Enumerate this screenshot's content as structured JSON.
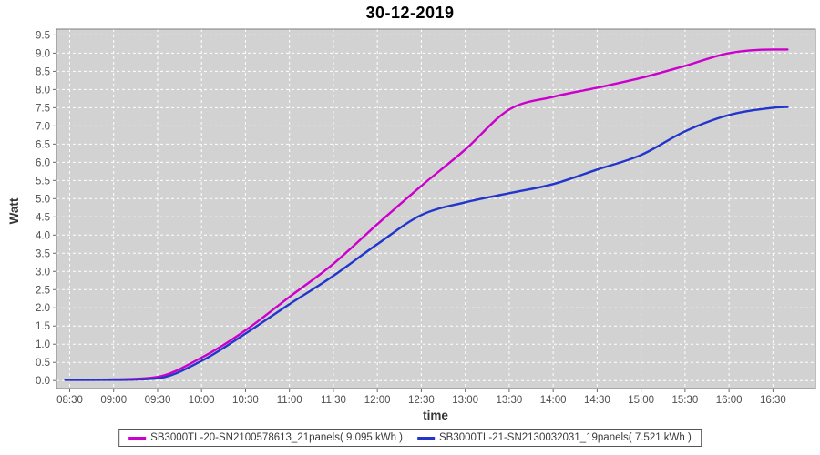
{
  "header": {
    "title": "30-12-2019"
  },
  "chart_data": {
    "type": "line",
    "title": "30-12-2019",
    "xlabel": "time",
    "ylabel": "Watt",
    "x_tick_labels": [
      "08:30",
      "09:00",
      "09:30",
      "10:00",
      "10:30",
      "11:00",
      "11:30",
      "12:00",
      "12:30",
      "13:00",
      "13:30",
      "14:00",
      "14:30",
      "15:00",
      "15:30",
      "16:00",
      "16:30"
    ],
    "y_tick_labels": [
      "0.0",
      "0.5",
      "1.0",
      "1.5",
      "2.0",
      "2.5",
      "3.0",
      "3.5",
      "4.0",
      "4.5",
      "5.0",
      "5.5",
      "6.0",
      "6.5",
      "7.0",
      "7.5",
      "8.0",
      "8.5",
      "9.0",
      "9.5"
    ],
    "xlim": [
      "08:21",
      "16:59"
    ],
    "ylim": [
      -0.22,
      9.66
    ],
    "grid": true,
    "legend_position": "bottom",
    "colors": {
      "plot_bg": "#d2d2d2",
      "grid": "#ffffff",
      "border": "#7e7e7e",
      "tick_text": "#4d4d4d",
      "axis_label_text": "#333333",
      "legend_border": "#555555"
    },
    "x": [
      "08:27",
      "08:30",
      "09:00",
      "09:30",
      "10:00",
      "10:30",
      "11:00",
      "11:30",
      "12:00",
      "12:30",
      "13:00",
      "13:30",
      "14:00",
      "14:30",
      "15:00",
      "15:30",
      "16:00",
      "16:30",
      "16:40"
    ],
    "series": [
      {
        "name": "SB3000TL-20-SN2100578613_21panels( 9.095 kWh )",
        "color": "#cc00cc",
        "total_kwh": "9.095",
        "values": [
          0.02,
          0.02,
          0.03,
          0.1,
          0.63,
          1.38,
          2.3,
          3.21,
          4.3,
          5.35,
          6.35,
          7.45,
          7.8,
          8.05,
          8.32,
          8.65,
          9.0,
          9.1,
          9.1
        ]
      },
      {
        "name": "SB3000TL-21-SN2130032031_19panels( 7.521 kWh )",
        "color": "#2236cc",
        "total_kwh": "7.521",
        "values": [
          0.02,
          0.02,
          0.02,
          0.06,
          0.54,
          1.29,
          2.1,
          2.88,
          3.75,
          4.55,
          4.9,
          5.15,
          5.4,
          5.8,
          6.2,
          6.85,
          7.3,
          7.5,
          7.52
        ]
      }
    ]
  }
}
